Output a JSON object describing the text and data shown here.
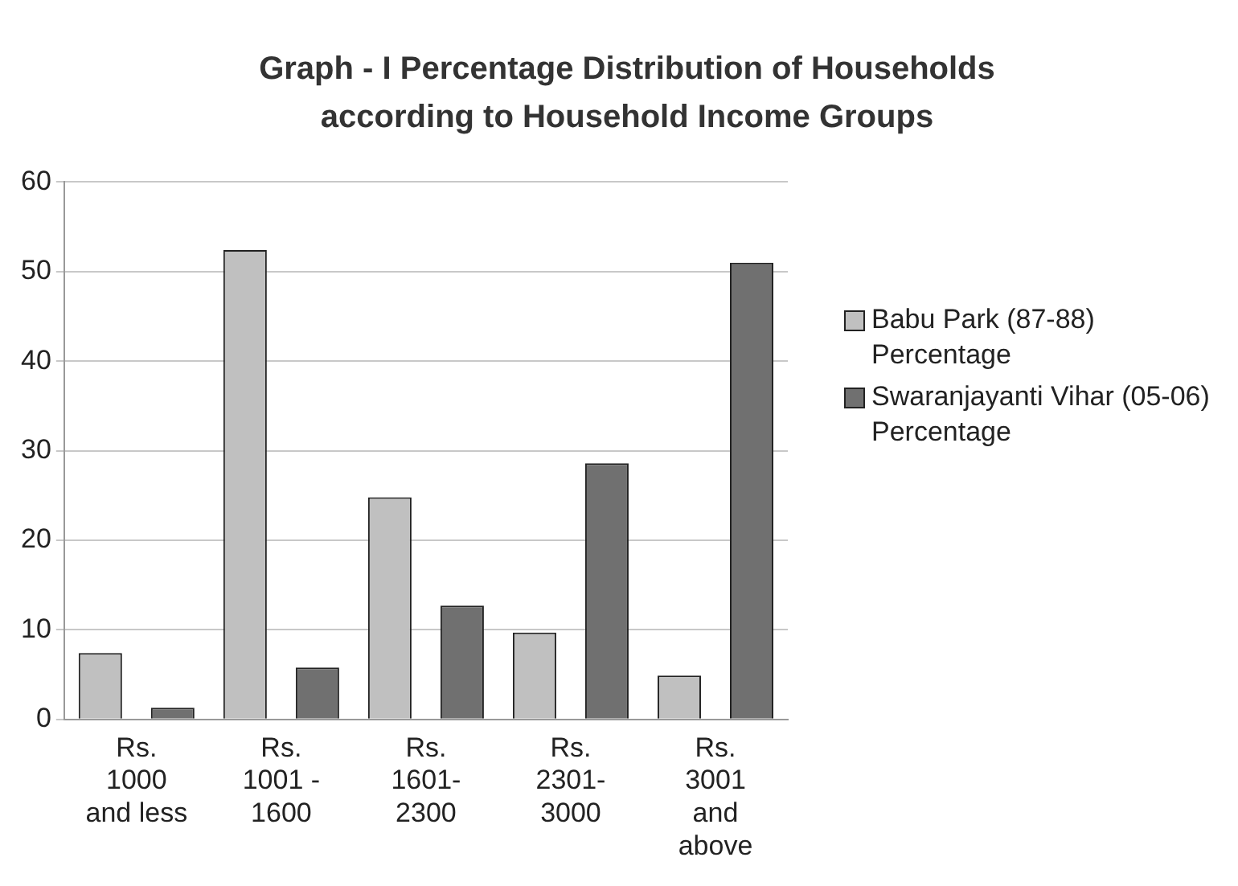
{
  "chart_data": {
    "type": "bar",
    "title": "Graph - I Percentage Distribution of Households according to Household Income Groups",
    "categories": [
      "Rs. 1000 and less",
      "Rs. 1001 - 1600",
      "Rs. 1601- 2300",
      "Rs. 2301- 3000",
      "Rs. 3001 and above"
    ],
    "series": [
      {
        "name": "Babu Park (87-88) Percentage",
        "color": "#c0c0c0",
        "values": [
          7.4,
          52.4,
          24.8,
          9.7,
          4.9
        ]
      },
      {
        "name": "Swaranjayanti Vihar (05-06) Percentage",
        "color": "#707070",
        "values": [
          1.3,
          5.8,
          12.7,
          28.6,
          51
        ]
      }
    ],
    "ylim": [
      0,
      60
    ],
    "yticks": [
      0,
      10,
      20,
      30,
      40,
      50,
      60
    ],
    "grid": "y",
    "legend": "right"
  }
}
